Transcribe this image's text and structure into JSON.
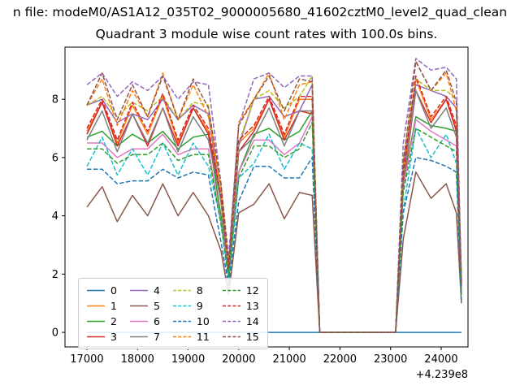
{
  "figure": {
    "suptitle": "n file: modeM0/AS1A12_035T02_9000005680_41602cztM0_level2_quad_clean",
    "title": "Quadrant 3 module wise count rates with 100.0s bins.",
    "background": "#ffffff"
  },
  "chart_data": {
    "type": "line",
    "title": "Quadrant 3 module wise count rates with 100.0s bins.",
    "xlabel": "",
    "ylabel": "",
    "x_offset_label": "+4.239e8",
    "x_tick_labels": [
      "17000",
      "18000",
      "19000",
      "20000",
      "21000",
      "22000",
      "23000",
      "24000"
    ],
    "x_ticks": [
      17000,
      18000,
      19000,
      20000,
      21000,
      22000,
      23000,
      24000
    ],
    "y_tick_labels": [
      "0",
      "2",
      "4",
      "6",
      "8"
    ],
    "y_ticks": [
      0,
      2,
      4,
      6,
      8
    ],
    "xlim": [
      16567,
      24530
    ],
    "ylim": [
      -0.5,
      9.79
    ],
    "grid": false,
    "legend": {
      "ncol": 4,
      "location": "lower left"
    },
    "x": [
      17000,
      17300,
      17600,
      17900,
      18200,
      18500,
      18800,
      19100,
      19400,
      19650,
      19800,
      20000,
      20300,
      20600,
      20900,
      21200,
      21450,
      21600,
      22000,
      22400,
      22800,
      23100,
      23250,
      23500,
      23800,
      24100,
      24300,
      24400
    ],
    "series": [
      {
        "name": "0",
        "color": "#1f77b4",
        "linestyle": "solid",
        "values": [
          0,
          0,
          0,
          0,
          0,
          0,
          0,
          0,
          0,
          0,
          0,
          0,
          0,
          0,
          0,
          0,
          0,
          0,
          0,
          0,
          0,
          0,
          0,
          0,
          0,
          0,
          0,
          0
        ]
      },
      {
        "name": "1",
        "color": "#ff7f0e",
        "linestyle": "solid",
        "values": [
          6.9,
          7.9,
          6.5,
          7.8,
          6.8,
          8.1,
          6.5,
          7.7,
          6.9,
          4.7,
          2.1,
          6.5,
          7.0,
          8.0,
          6.7,
          8.0,
          8.0,
          0,
          0,
          0,
          0,
          0,
          5.3,
          8.7,
          7.3,
          8.0,
          7.0,
          1.7
        ]
      },
      {
        "name": "2",
        "color": "#2ca02c",
        "linestyle": "solid",
        "values": [
          6.7,
          6.9,
          6.4,
          6.8,
          6.5,
          6.9,
          6.3,
          6.7,
          6.8,
          4.0,
          2.0,
          5.5,
          6.8,
          7.0,
          6.6,
          6.9,
          7.6,
          0,
          0,
          0,
          0,
          0,
          5.1,
          7.4,
          7.1,
          7.0,
          6.9,
          1.4
        ]
      },
      {
        "name": "3",
        "color": "#d62728",
        "linestyle": "solid",
        "values": [
          6.8,
          7.9,
          6.4,
          7.5,
          6.4,
          7.7,
          6.4,
          7.7,
          6.8,
          4.5,
          2.0,
          6.2,
          6.9,
          8.0,
          6.6,
          7.6,
          7.5,
          0,
          0,
          0,
          0,
          0,
          5.0,
          8.3,
          7.2,
          8.0,
          6.9,
          1.6
        ]
      },
      {
        "name": "4",
        "color": "#9467bd",
        "linestyle": "solid",
        "values": [
          7.8,
          8.0,
          7.2,
          7.5,
          7.3,
          8.0,
          7.3,
          7.8,
          7.5,
          4.5,
          2.3,
          6.4,
          8.0,
          8.1,
          7.4,
          7.6,
          8.5,
          0,
          0,
          0,
          0,
          0,
          5.7,
          8.5,
          8.3,
          8.1,
          7.7,
          1.6
        ]
      },
      {
        "name": "5",
        "color": "#8c564b",
        "linestyle": "solid",
        "values": [
          4.3,
          5.0,
          3.8,
          4.7,
          4.0,
          5.1,
          4.0,
          4.8,
          4.0,
          2.8,
          1.3,
          4.1,
          4.4,
          5.1,
          3.9,
          4.8,
          4.7,
          0,
          0,
          0,
          0,
          0,
          3.2,
          5.5,
          4.6,
          5.1,
          4.1,
          1.0
        ]
      },
      {
        "name": "6",
        "color": "#e377c2",
        "linestyle": "solid",
        "values": [
          6.5,
          6.5,
          6.0,
          6.3,
          6.3,
          6.8,
          6.1,
          6.3,
          6.3,
          3.8,
          2.0,
          5.5,
          6.6,
          6.6,
          6.1,
          6.5,
          7.4,
          0,
          0,
          0,
          0,
          0,
          5.0,
          7.3,
          6.9,
          6.6,
          6.4,
          1.3
        ]
      },
      {
        "name": "7",
        "color": "#7f7f7f",
        "linestyle": "solid",
        "values": [
          6.6,
          7.6,
          6.2,
          7.5,
          6.5,
          7.7,
          6.2,
          7.4,
          6.6,
          4.5,
          2.0,
          6.2,
          6.7,
          7.7,
          6.4,
          7.6,
          7.6,
          0,
          0,
          0,
          0,
          0,
          5.1,
          8.3,
          7.0,
          7.7,
          6.7,
          1.6
        ]
      },
      {
        "name": "8",
        "color": "#bcbd22",
        "linestyle": "dashed",
        "values": [
          7.8,
          8.1,
          7.4,
          7.9,
          7.6,
          8.1,
          7.3,
          7.9,
          7.8,
          4.7,
          2.4,
          6.5,
          8.0,
          8.3,
          7.7,
          8.1,
          8.8,
          0,
          0,
          0,
          0,
          0,
          5.9,
          8.7,
          8.3,
          8.3,
          8.0,
          1.7
        ]
      },
      {
        "name": "9",
        "color": "#17becf",
        "linestyle": "dashed",
        "values": [
          5.7,
          6.7,
          5.4,
          6.3,
          5.4,
          6.5,
          5.4,
          6.5,
          5.7,
          3.8,
          1.7,
          5.3,
          5.8,
          6.8,
          5.6,
          6.5,
          6.3,
          0,
          0,
          0,
          0,
          0,
          4.2,
          7.0,
          6.0,
          6.8,
          5.8,
          1.3
        ]
      },
      {
        "name": "10",
        "color": "#1f77b4",
        "linestyle": "dashed",
        "values": [
          5.6,
          5.6,
          5.1,
          5.2,
          5.2,
          5.6,
          5.3,
          5.5,
          5.4,
          3.1,
          1.6,
          4.5,
          5.7,
          5.7,
          5.3,
          5.3,
          6.0,
          0,
          0,
          0,
          0,
          0,
          4.1,
          6.0,
          5.9,
          5.7,
          5.5,
          1.1
        ]
      },
      {
        "name": "11",
        "color": "#ff7f0e",
        "linestyle": "dashed",
        "values": [
          7.8,
          8.7,
          7.1,
          8.3,
          7.4,
          8.9,
          7.3,
          8.5,
          7.4,
          5.0,
          2.3,
          7.2,
          8.0,
          8.9,
          7.3,
          8.5,
          8.6,
          0,
          0,
          0,
          0,
          0,
          5.8,
          9.3,
          8.3,
          8.9,
          7.6,
          1.8
        ]
      },
      {
        "name": "12",
        "color": "#2ca02c",
        "linestyle": "dashed",
        "values": [
          6.3,
          6.3,
          5.8,
          6.1,
          6.1,
          6.5,
          5.9,
          6.1,
          6.1,
          3.7,
          1.9,
          5.3,
          6.4,
          6.4,
          6.0,
          6.3,
          7.2,
          0,
          0,
          0,
          0,
          0,
          4.8,
          7.0,
          6.7,
          6.4,
          6.2,
          1.3
        ]
      },
      {
        "name": "13",
        "color": "#d62728",
        "linestyle": "dashed",
        "values": [
          7.0,
          8.0,
          6.6,
          7.9,
          6.9,
          8.2,
          6.6,
          7.8,
          7.0,
          4.7,
          2.2,
          6.6,
          7.1,
          8.1,
          6.8,
          8.1,
          8.1,
          0,
          0,
          0,
          0,
          0,
          5.4,
          8.8,
          7.4,
          8.1,
          7.1,
          1.7
        ]
      },
      {
        "name": "14",
        "color": "#9467bd",
        "linestyle": "dashed",
        "values": [
          8.5,
          8.9,
          8.1,
          8.6,
          8.3,
          8.8,
          8.0,
          8.6,
          8.5,
          5.1,
          2.6,
          7.1,
          8.7,
          8.9,
          8.4,
          8.8,
          8.8,
          0,
          0,
          0,
          0,
          0,
          6.5,
          9.4,
          9.0,
          9.1,
          8.7,
          1.8
        ]
      },
      {
        "name": "15",
        "color": "#8c564b",
        "linestyle": "dashed",
        "values": [
          7.8,
          8.9,
          7.3,
          8.5,
          7.4,
          8.8,
          7.3,
          8.7,
          7.7,
          5.1,
          2.3,
          7.1,
          8.0,
          8.8,
          7.6,
          8.7,
          8.6,
          0,
          0,
          0,
          0,
          0,
          5.8,
          9.3,
          8.3,
          9.0,
          7.9,
          1.8
        ]
      }
    ]
  }
}
